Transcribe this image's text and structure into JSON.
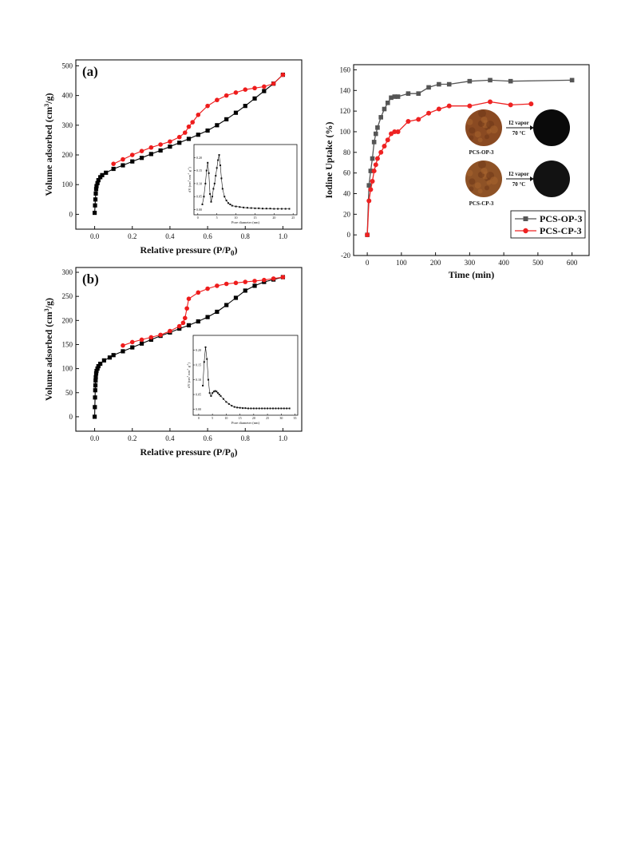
{
  "chart_data": [
    {
      "id": "a",
      "type": "scatter",
      "panel_label": "(a)",
      "xlabel": "Relative pressure (P/P0)",
      "ylabel": "Volume adsorbed (cm3/g)",
      "xlim": [
        -0.1,
        1.1
      ],
      "ylim": [
        -50,
        520
      ],
      "xticks": [
        0.0,
        0.2,
        0.4,
        0.6,
        0.8,
        1.0
      ],
      "xtick_labels": [
        "0.0",
        "0.2",
        "0.4",
        "0.6",
        "0.8",
        "1.0"
      ],
      "yticks": [
        0,
        100,
        200,
        300,
        400,
        500
      ],
      "ytick_labels": [
        "0",
        "100",
        "200",
        "300",
        "400",
        "500"
      ],
      "colors": {
        "adsorption": "#000000",
        "desorption": "#ee1c1c"
      },
      "series": [
        {
          "x": [
            0.0,
            0.002,
            0.004,
            0.006,
            0.008,
            0.01,
            0.015,
            0.02,
            0.03,
            0.04,
            0.06,
            0.1,
            0.15,
            0.2,
            0.25,
            0.3,
            0.35,
            0.4,
            0.45,
            0.5,
            0.55,
            0.6,
            0.65,
            0.7,
            0.75,
            0.8,
            0.85,
            0.9,
            0.95,
            1.0
          ],
          "y": [
            5,
            30,
            50,
            70,
            85,
            95,
            105,
            115,
            125,
            132,
            140,
            153,
            165,
            178,
            190,
            203,
            215,
            228,
            241,
            254,
            268,
            282,
            300,
            320,
            342,
            365,
            390,
            415,
            440,
            470
          ]
        },
        {
          "x": [
            1.0,
            0.95,
            0.9,
            0.85,
            0.8,
            0.75,
            0.7,
            0.65,
            0.6,
            0.55,
            0.52,
            0.5,
            0.48,
            0.45,
            0.4,
            0.35,
            0.3,
            0.25,
            0.2,
            0.15,
            0.1
          ],
          "y": [
            470,
            440,
            430,
            425,
            420,
            410,
            400,
            385,
            365,
            335,
            310,
            295,
            275,
            260,
            245,
            235,
            225,
            213,
            200,
            185,
            170
          ]
        }
      ],
      "inset": {
        "xlabel": "Pore diameter (nm)",
        "ylabel": "dV (cm3 nm-1 g-1)",
        "xlim": [
          -1,
          26
        ],
        "ylim": [
          -0.02,
          0.25
        ],
        "xticks": [
          0,
          5,
          10,
          15,
          20,
          25
        ],
        "xtick_labels": [
          "0",
          "5",
          "10",
          "15",
          "20",
          "25"
        ],
        "yticks": [
          0.0,
          0.05,
          0.1,
          0.15,
          0.2
        ],
        "ytick_labels": [
          "0.00",
          "0.05",
          "0.10",
          "0.15",
          "0.20"
        ],
        "x": [
          1.2,
          1.6,
          2.0,
          2.3,
          2.6,
          2.9,
          3.2,
          3.5,
          3.8,
          4.1,
          4.4,
          4.7,
          5.0,
          5.3,
          5.6,
          5.9,
          6.2,
          6.5,
          7.0,
          7.5,
          8.0,
          8.5,
          9,
          10,
          11,
          12,
          13,
          14,
          15,
          16,
          17,
          18,
          19,
          20,
          21,
          22,
          23,
          24
        ],
        "y": [
          0.02,
          0.05,
          0.1,
          0.15,
          0.18,
          0.14,
          0.06,
          0.03,
          0.05,
          0.08,
          0.1,
          0.13,
          0.16,
          0.19,
          0.21,
          0.17,
          0.12,
          0.08,
          0.05,
          0.035,
          0.025,
          0.02,
          0.015,
          0.012,
          0.01,
          0.008,
          0.007,
          0.006,
          0.005,
          0.005,
          0.004,
          0.004,
          0.004,
          0.003,
          0.003,
          0.003,
          0.003,
          0.003
        ]
      }
    },
    {
      "id": "b",
      "type": "scatter",
      "panel_label": "(b)",
      "xlabel": "Relative pressure (P/P0)",
      "ylabel": "Volume adsorbed (cm3/g)",
      "xlim": [
        -0.1,
        1.1
      ],
      "ylim": [
        -30,
        310
      ],
      "xticks": [
        0.0,
        0.2,
        0.4,
        0.6,
        0.8,
        1.0
      ],
      "xtick_labels": [
        "0.0",
        "0.2",
        "0.4",
        "0.6",
        "0.8",
        "1.0"
      ],
      "yticks": [
        0,
        50,
        100,
        150,
        200,
        250,
        300
      ],
      "ytick_labels": [
        "0",
        "50",
        "100",
        "150",
        "200",
        "250",
        "300"
      ],
      "colors": {
        "adsorption": "#000000",
        "desorption": "#ee1c1c"
      },
      "series": [
        {
          "x": [
            0.0,
            0.001,
            0.002,
            0.003,
            0.004,
            0.005,
            0.006,
            0.008,
            0.01,
            0.015,
            0.02,
            0.03,
            0.05,
            0.08,
            0.1,
            0.15,
            0.2,
            0.25,
            0.3,
            0.35,
            0.4,
            0.45,
            0.5,
            0.55,
            0.6,
            0.65,
            0.7,
            0.75,
            0.8,
            0.85,
            0.9,
            0.95,
            1.0
          ],
          "y": [
            0,
            20,
            40,
            55,
            65,
            75,
            82,
            90,
            95,
            100,
            105,
            110,
            117,
            123,
            128,
            136,
            144,
            152,
            160,
            168,
            175,
            183,
            190,
            198,
            207,
            218,
            232,
            247,
            262,
            272,
            280,
            285,
            290
          ]
        },
        {
          "x": [
            1.0,
            0.95,
            0.9,
            0.85,
            0.8,
            0.75,
            0.7,
            0.65,
            0.6,
            0.55,
            0.5,
            0.49,
            0.48,
            0.47,
            0.45,
            0.4,
            0.35,
            0.3,
            0.25,
            0.2,
            0.15
          ],
          "y": [
            290,
            287,
            284,
            282,
            280,
            278,
            276,
            272,
            266,
            258,
            245,
            225,
            205,
            195,
            188,
            178,
            170,
            165,
            160,
            155,
            148
          ]
        }
      ],
      "inset": {
        "xlabel": "Pore diameter (nm)",
        "ylabel": "dV (cm3 nm-1 g-1)",
        "xlim": [
          -2,
          36
        ],
        "ylim": [
          -0.02,
          0.25
        ],
        "xticks": [
          0,
          5,
          10,
          15,
          20,
          25,
          30,
          35
        ],
        "xtick_labels": [
          "0",
          "5",
          "10",
          "15",
          "20",
          "25",
          "30",
          "35"
        ],
        "yticks": [
          0.0,
          0.05,
          0.1,
          0.15,
          0.2
        ],
        "ytick_labels": [
          "0.00",
          "0.05",
          "0.10",
          "0.15",
          "0.20"
        ],
        "x": [
          1.5,
          2,
          2.5,
          3,
          3.5,
          4,
          4.5,
          5,
          5.5,
          6,
          6.5,
          7,
          7.5,
          8,
          9,
          10,
          11,
          12,
          13,
          14,
          15,
          16,
          17,
          18,
          19,
          20,
          21,
          22,
          23,
          24,
          25,
          26,
          27,
          28,
          29,
          30,
          31,
          32,
          33
        ],
        "y": [
          0.08,
          0.16,
          0.21,
          0.17,
          0.1,
          0.055,
          0.045,
          0.055,
          0.06,
          0.062,
          0.06,
          0.055,
          0.05,
          0.045,
          0.035,
          0.025,
          0.018,
          0.012,
          0.008,
          0.006,
          0.005,
          0.004,
          0.004,
          0.003,
          0.003,
          0.003,
          0.003,
          0.003,
          0.003,
          0.003,
          0.003,
          0.003,
          0.003,
          0.003,
          0.003,
          0.003,
          0.003,
          0.003,
          0.003
        ]
      }
    },
    {
      "id": "c",
      "type": "line",
      "xlabel": "Time (min)",
      "ylabel": "Iodine Uptake (%)",
      "xlim": [
        -40,
        650
      ],
      "ylim": [
        -20,
        165
      ],
      "xticks": [
        0,
        100,
        200,
        300,
        400,
        500,
        600
      ],
      "xtick_labels": [
        "0",
        "100",
        "200",
        "300",
        "400",
        "500",
        "600"
      ],
      "yticks": [
        -20,
        0,
        20,
        40,
        60,
        80,
        100,
        120,
        140,
        160
      ],
      "ytick_labels": [
        "-20",
        "0",
        "20",
        "40",
        "60",
        "80",
        "100",
        "120",
        "140",
        "160"
      ],
      "legend_position": "bottom-right",
      "series": [
        {
          "name": "PCS-OP-3",
          "color": "#555555",
          "marker": "square",
          "x": [
            0,
            5,
            10,
            15,
            20,
            25,
            30,
            40,
            50,
            60,
            70,
            80,
            90,
            120,
            150,
            180,
            210,
            240,
            300,
            360,
            420,
            600
          ],
          "y": [
            0,
            48,
            62,
            74,
            90,
            98,
            104,
            114,
            122,
            128,
            133,
            134,
            134,
            137,
            137,
            143,
            146,
            146,
            149,
            150,
            149,
            150
          ]
        },
        {
          "name": "PCS-CP-3",
          "color": "#ee2222",
          "marker": "circle",
          "x": [
            0,
            5,
            10,
            15,
            20,
            25,
            30,
            40,
            50,
            60,
            70,
            80,
            90,
            120,
            150,
            180,
            210,
            240,
            300,
            360,
            420,
            480
          ],
          "y": [
            0,
            33,
            44,
            52,
            62,
            68,
            74,
            80,
            86,
            92,
            98,
            100,
            100,
            110,
            112,
            118,
            122,
            125,
            125,
            129,
            126,
            127
          ]
        }
      ],
      "photos": [
        {
          "label": "PCS-OP-3",
          "arrow_top": "I2 vapor",
          "arrow_bottom": "70 °C",
          "before_color": "#8a4a22",
          "after_color": "#0a0a0a"
        },
        {
          "label": "PCS-CP-3",
          "arrow_top": "I2 vapor",
          "arrow_bottom": "70 °C",
          "before_color": "#8e5226",
          "after_color": "#121212"
        }
      ]
    }
  ]
}
